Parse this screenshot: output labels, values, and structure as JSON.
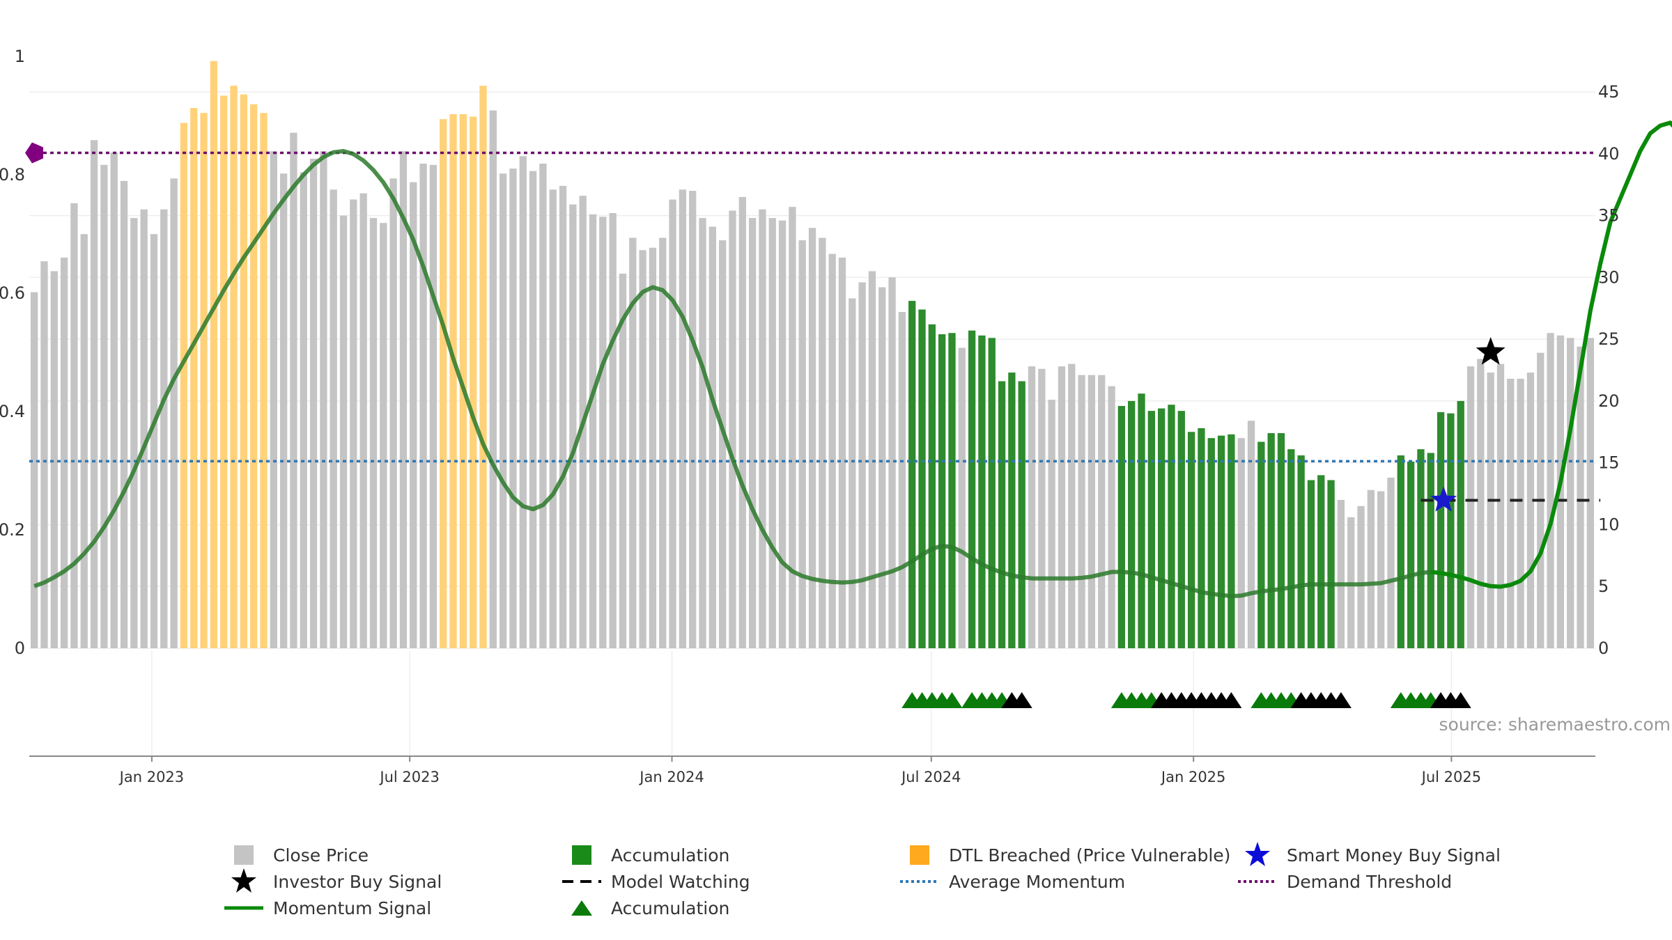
{
  "colors": {
    "close_bar": "#c4c4c4",
    "accumulation_bar": "#2e8b2e",
    "dtl_bar": "#ffd27a",
    "momentum": "#2b7a2b",
    "momentum_bright": "#0a8a0a",
    "average": "#2f78b4",
    "demand": "#6b0f6b",
    "grid": "#eeeeee",
    "axis": "#888888",
    "source": "#999999",
    "investor_star": "#000000",
    "smart_money_star": "#1a1acc"
  },
  "source_text": "source: sharemaestro.com",
  "legend": [
    {
      "label": "Close Price",
      "icon": "gray-square"
    },
    {
      "label": "Accumulation",
      "icon": "green-square"
    },
    {
      "label": "DTL Breached (Price Vulnerable)",
      "icon": "orange-square"
    },
    {
      "label": "Smart Money Buy Signal",
      "icon": "blue-star"
    },
    {
      "label": "Investor Buy Signal",
      "icon": "black-star"
    },
    {
      "label": "Model Watching",
      "icon": "dashed-line"
    },
    {
      "label": "Average Momentum",
      "icon": "blue-dotted-line"
    },
    {
      "label": "Demand Threshold",
      "icon": "purple-dotted-line"
    },
    {
      "label": "Momentum Signal",
      "icon": "green-line"
    },
    {
      "label": "Accumulation",
      "icon": "green-triangle"
    }
  ],
  "chart_data": {
    "type": "bar",
    "x_ticks": [
      "Jan 2023",
      "Jul 2023",
      "Jan 2024",
      "Jul 2024",
      "Jan 2025",
      "Jul 2025"
    ],
    "left_axis": {
      "ticks": [
        "0",
        "0.2",
        "0.4",
        "0.6",
        "0.8",
        "1"
      ],
      "ylim": [
        0,
        1
      ]
    },
    "right_axis": {
      "ticks": [
        "0",
        "5",
        "10",
        "15",
        "20",
        "25",
        "30",
        "35",
        "40",
        "45"
      ],
      "ylim": [
        0,
        49
      ]
    },
    "grid": true,
    "legend_position": "bottom",
    "first_week": "2022-10-07",
    "close_price": [
      28.8,
      31.3,
      30.5,
      31.6,
      36,
      33.5,
      41.1,
      39.1,
      40.1,
      37.8,
      34.8,
      35.5,
      33.5,
      35.5,
      38,
      42.5,
      43.7,
      43.3,
      47.5,
      44.7,
      45.5,
      44.8,
      44,
      43.3,
      40.2,
      38.4,
      41.7,
      38.5,
      39.6,
      40.2,
      37.1,
      35,
      36.3,
      36.8,
      34.8,
      34.4,
      38,
      40.2,
      37.7,
      39.2,
      39.1,
      42.8,
      43.2,
      43.2,
      43,
      45.5,
      43.5,
      38.4,
      38.8,
      39.8,
      38.6,
      39.2,
      37.1,
      37.4,
      35.9,
      36.6,
      35.1,
      34.9,
      35.2,
      30.3,
      33.2,
      32.2,
      32.4,
      33.2,
      36.3,
      37.1,
      37,
      34.8,
      34.1,
      33,
      35.4,
      36.5,
      34.8,
      35.5,
      34.8,
      34.6,
      35.7,
      33,
      34,
      33.2,
      31.9,
      31.6,
      28.3,
      29.6,
      30.5,
      29.2,
      30,
      27.2,
      28.1,
      27.4,
      26.2,
      25.4,
      25.5,
      24.3,
      25.7,
      25.3,
      25.1,
      21.6,
      22.3,
      21.6,
      22.8,
      22.6,
      20.1,
      22.8,
      23,
      22.1,
      22.1,
      22.1,
      21.2,
      19.6,
      20,
      20.6,
      19.2,
      19.4,
      19.7,
      19.2,
      17.5,
      17.8,
      17,
      17.2,
      17.3,
      17,
      18.4,
      16.7,
      17.4,
      17.4,
      16.1,
      15.6,
      13.6,
      14,
      13.6,
      12,
      10.6,
      11.5,
      12.8,
      12.7,
      13.8,
      15.6,
      15.1,
      16.1,
      15.8,
      19.1,
      19,
      20,
      22.8,
      23.4,
      22.3,
      23,
      21.8,
      21.8,
      22.3,
      23.9,
      25.5,
      25.3,
      25.1,
      24.4,
      25.1
    ],
    "series": [
      {
        "name": "Close Price",
        "role": "bars-neutral"
      },
      {
        "name": "Accumulation",
        "role": "bars-accumulation",
        "ranges": [
          [
            88,
            92
          ],
          [
            94,
            99
          ],
          [
            109,
            120
          ],
          [
            123,
            130
          ],
          [
            137,
            143
          ]
        ]
      },
      {
        "name": "DTL Breached (Price Vulnerable)",
        "role": "bars-vulnerable",
        "ranges": [
          [
            15,
            23
          ],
          [
            41,
            45
          ]
        ]
      },
      {
        "name": "Momentum Signal",
        "axis": "left",
        "values": [
          0.105,
          0.111,
          0.12,
          0.13,
          0.143,
          0.16,
          0.18,
          0.205,
          0.233,
          0.265,
          0.3,
          0.34,
          0.38,
          0.42,
          0.455,
          0.485,
          0.515,
          0.545,
          0.575,
          0.605,
          0.633,
          0.66,
          0.685,
          0.71,
          0.735,
          0.758,
          0.78,
          0.8,
          0.817,
          0.83,
          0.838,
          0.84,
          0.835,
          0.824,
          0.808,
          0.787,
          0.76,
          0.727,
          0.69,
          0.645,
          0.595,
          0.545,
          0.49,
          0.44,
          0.39,
          0.345,
          0.31,
          0.28,
          0.255,
          0.24,
          0.235,
          0.242,
          0.26,
          0.29,
          0.33,
          0.38,
          0.43,
          0.48,
          0.52,
          0.555,
          0.583,
          0.602,
          0.61,
          0.605,
          0.588,
          0.56,
          0.52,
          0.475,
          0.42,
          0.37,
          0.32,
          0.275,
          0.235,
          0.2,
          0.17,
          0.145,
          0.13,
          0.122,
          0.117,
          0.114,
          0.112,
          0.111,
          0.112,
          0.115,
          0.12,
          0.125,
          0.13,
          0.137,
          0.147,
          0.158,
          0.168,
          0.173,
          0.171,
          0.163,
          0.152,
          0.142,
          0.134,
          0.128,
          0.123,
          0.12,
          0.118,
          0.118,
          0.118,
          0.118,
          0.118,
          0.119,
          0.121,
          0.125,
          0.129,
          0.129,
          0.128,
          0.125,
          0.12,
          0.115,
          0.11,
          0.105,
          0.1,
          0.095,
          0.092,
          0.09,
          0.088,
          0.089,
          0.093,
          0.096,
          0.098,
          0.1,
          0.103,
          0.106,
          0.108,
          0.108,
          0.108,
          0.108,
          0.108,
          0.108,
          0.109,
          0.11,
          0.114,
          0.118,
          0.123,
          0.127,
          0.129,
          0.127,
          0.124,
          0.12,
          0.115,
          0.109,
          0.105,
          0.104,
          0.107,
          0.114,
          0.13,
          0.16,
          0.21,
          0.28,
          0.37,
          0.47,
          0.57,
          0.65,
          0.72,
          0.76,
          0.8,
          0.84,
          0.87,
          0.883,
          0.888,
          0.87,
          0.875,
          0.876
        ]
      },
      {
        "name": "Average Momentum",
        "axis": "left",
        "value": 0.316
      },
      {
        "name": "Demand Threshold",
        "axis": "left",
        "value": 0.837
      },
      {
        "name": "Model Watching",
        "axis": "left",
        "value": 0.25,
        "range": [
          139,
          157
        ]
      },
      {
        "name": "Investor Buy Signal",
        "axis": "left",
        "points": [
          {
            "index": 146,
            "value": 0.5
          }
        ]
      },
      {
        "name": "Smart Money Buy Signal",
        "axis": "left",
        "points": [
          {
            "index": 141,
            "value": 0.25
          }
        ]
      },
      {
        "name": "Accumulation",
        "role": "triangles",
        "markers": [
          {
            "start": 88,
            "count": 5,
            "color": "green"
          },
          {
            "start": 94,
            "count": 4,
            "color": "green"
          },
          {
            "start": 98,
            "count": 2,
            "color": "black"
          },
          {
            "start": 109,
            "count": 4,
            "color": "green"
          },
          {
            "start": 113,
            "count": 8,
            "color": "black"
          },
          {
            "start": 123,
            "count": 4,
            "color": "green"
          },
          {
            "start": 127,
            "count": 5,
            "color": "black"
          },
          {
            "start": 137,
            "count": 4,
            "color": "green"
          },
          {
            "start": 141,
            "count": 3,
            "color": "black"
          }
        ]
      }
    ]
  }
}
